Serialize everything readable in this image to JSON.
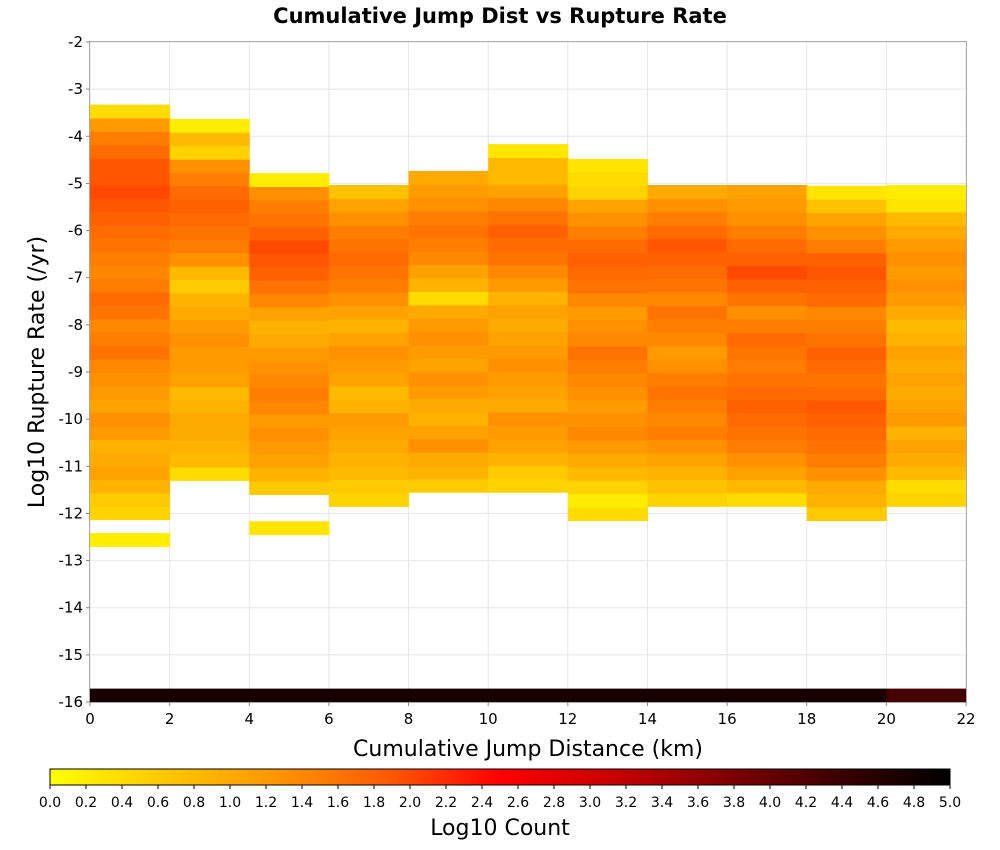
{
  "chart_data": {
    "type": "heatmap",
    "title": "Cumulative Jump Dist vs Rupture Rate",
    "xlabel": "Cumulative Jump Distance (km)",
    "ylabel": "Log10 Rupture Rate (/yr)",
    "colorbar_label": "Log10 Count",
    "xlim": [
      0,
      22
    ],
    "ylim": [
      -16,
      -2
    ],
    "clim": [
      0,
      5
    ],
    "x_ticks": [
      "0",
      "2",
      "4",
      "6",
      "8",
      "10",
      "12",
      "14",
      "16",
      "18",
      "20",
      "22"
    ],
    "y_ticks": [
      "-2",
      "-3",
      "-4",
      "-5",
      "-6",
      "-7",
      "-8",
      "-9",
      "-10",
      "-11",
      "-12",
      "-13",
      "-14",
      "-15",
      "-16"
    ],
    "colorbar_ticks": [
      "0.0",
      "0.2",
      "0.4",
      "0.6",
      "0.8",
      "1.0",
      "1.2",
      "1.4",
      "1.6",
      "1.8",
      "2.0",
      "2.2",
      "2.4",
      "2.6",
      "2.8",
      "3.0",
      "3.2",
      "3.4",
      "3.6",
      "3.8",
      "4.0",
      "4.2",
      "4.4",
      "4.6",
      "4.8",
      "5.0"
    ],
    "colormap": [
      "#ffff00",
      "#ffc800",
      "#ff9600",
      "#ff5a00",
      "#ff0000",
      "#c80000",
      "#820000",
      "#3c0000",
      "#000000"
    ],
    "grid": true,
    "bin_width_x": 2,
    "bin_height_y": 0.284,
    "y_bin_start": -16,
    "x_bins": [
      0,
      2,
      4,
      6,
      8,
      10,
      12,
      14,
      16,
      18,
      20
    ],
    "columns": [
      {
        "x": 0,
        "y_start": -12.7,
        "values": [
          0.2,
          null,
          0.5,
          0.6,
          0.9,
          1.1,
          1.0,
          0.9,
          1.2,
          1.3,
          1.1,
          1.2,
          1.3,
          1.4,
          1.6,
          1.5,
          1.4,
          1.6,
          1.7,
          1.5,
          1.4,
          1.5,
          1.6,
          1.7,
          1.8,
          1.9,
          2.0,
          1.9,
          1.9,
          1.7,
          1.5,
          1.2,
          0.4
        ]
      },
      {
        "x": 2,
        "y_start": -11.3,
        "values": [
          0.4,
          0.8,
          0.9,
          1.0,
          1.0,
          0.9,
          0.8,
          1.1,
          1.2,
          1.2,
          1.3,
          1.2,
          1.0,
          0.9,
          0.6,
          0.8,
          1.3,
          1.5,
          1.6,
          1.7,
          1.8,
          1.7,
          1.5,
          1.3,
          0.5,
          0.8,
          0.2
        ]
      },
      {
        "x": 4,
        "y_start": -12.45,
        "values": [
          0.3,
          null,
          null,
          0.6,
          0.9,
          1.1,
          1.2,
          1.3,
          1.2,
          1.4,
          1.5,
          1.4,
          1.3,
          1.2,
          1.0,
          0.9,
          1.1,
          1.4,
          1.6,
          1.8,
          1.9,
          2.0,
          1.8,
          1.6,
          1.5,
          1.3,
          0.2
        ]
      },
      {
        "x": 6,
        "y_start": -11.85,
        "values": [
          0.5,
          0.6,
          0.8,
          0.9,
          1.0,
          1.1,
          1.2,
          0.9,
          0.8,
          1.1,
          1.2,
          1.3,
          1.1,
          0.9,
          1.1,
          1.3,
          1.5,
          1.6,
          1.7,
          1.6,
          1.5,
          1.3,
          1.1,
          0.7
        ]
      },
      {
        "x": 8,
        "y_start": -11.55,
        "values": [
          0.6,
          0.9,
          1.0,
          1.3,
          1.1,
          0.9,
          1.0,
          1.2,
          1.3,
          1.1,
          1.2,
          1.3,
          1.2,
          1.0,
          0.4,
          0.9,
          1.1,
          1.4,
          1.5,
          1.6,
          1.5,
          1.3,
          1.2,
          1.0
        ]
      },
      {
        "x": 10,
        "y_start": -11.55,
        "values": [
          0.5,
          0.6,
          0.9,
          1.1,
          1.2,
          1.3,
          1.0,
          1.1,
          1.2,
          1.3,
          1.2,
          1.1,
          1.0,
          1.1,
          0.9,
          1.2,
          1.4,
          1.6,
          1.7,
          1.8,
          1.6,
          1.4,
          1.1,
          0.8,
          0.8,
          0.3
        ]
      },
      {
        "x": 12,
        "y_start": -12.15,
        "values": [
          0.4,
          0.2,
          0.5,
          0.8,
          1.0,
          1.2,
          1.4,
          1.3,
          1.2,
          1.3,
          1.4,
          1.5,
          1.6,
          1.4,
          1.3,
          1.2,
          1.4,
          1.6,
          1.7,
          1.8,
          1.7,
          1.5,
          1.3,
          1.1,
          0.5,
          0.4,
          0.3
        ]
      },
      {
        "x": 14,
        "y_start": -11.85,
        "values": [
          0.5,
          0.7,
          0.9,
          1.1,
          1.3,
          1.5,
          1.4,
          1.5,
          1.6,
          1.5,
          1.3,
          1.2,
          1.4,
          1.5,
          1.6,
          1.4,
          1.6,
          1.7,
          1.8,
          1.9,
          1.7,
          1.5,
          1.3,
          1.0
        ]
      },
      {
        "x": 16,
        "y_start": -11.85,
        "values": [
          0.4,
          0.8,
          1.1,
          1.3,
          1.5,
          1.6,
          1.7,
          1.8,
          1.7,
          1.6,
          1.5,
          1.6,
          1.7,
          1.5,
          1.3,
          1.6,
          1.8,
          2.0,
          1.8,
          1.7,
          1.5,
          1.3,
          1.2,
          1.1
        ]
      },
      {
        "x": 18,
        "y_start": -12.15,
        "values": [
          0.6,
          0.9,
          1.0,
          1.3,
          1.5,
          1.6,
          1.7,
          1.8,
          1.9,
          1.7,
          1.6,
          1.7,
          1.8,
          1.6,
          1.5,
          1.4,
          1.7,
          1.8,
          1.9,
          1.8,
          1.5,
          1.3,
          1.1,
          0.7,
          0.3
        ]
      },
      {
        "x": 20,
        "y_start": -11.85,
        "values": [
          0.5,
          0.4,
          0.8,
          1.0,
          1.1,
          0.9,
          1.2,
          1.1,
          1.0,
          1.1,
          1.0,
          1.1,
          0.9,
          0.8,
          1.0,
          1.2,
          1.3,
          1.2,
          1.3,
          1.2,
          1.0,
          0.8,
          0.3,
          0.2
        ]
      }
    ],
    "bottom_row": {
      "y": -16,
      "values": [
        4.75,
        4.75,
        4.75,
        4.75,
        4.75,
        4.75,
        4.75,
        4.75,
        4.75,
        4.75,
        4.3
      ]
    }
  }
}
